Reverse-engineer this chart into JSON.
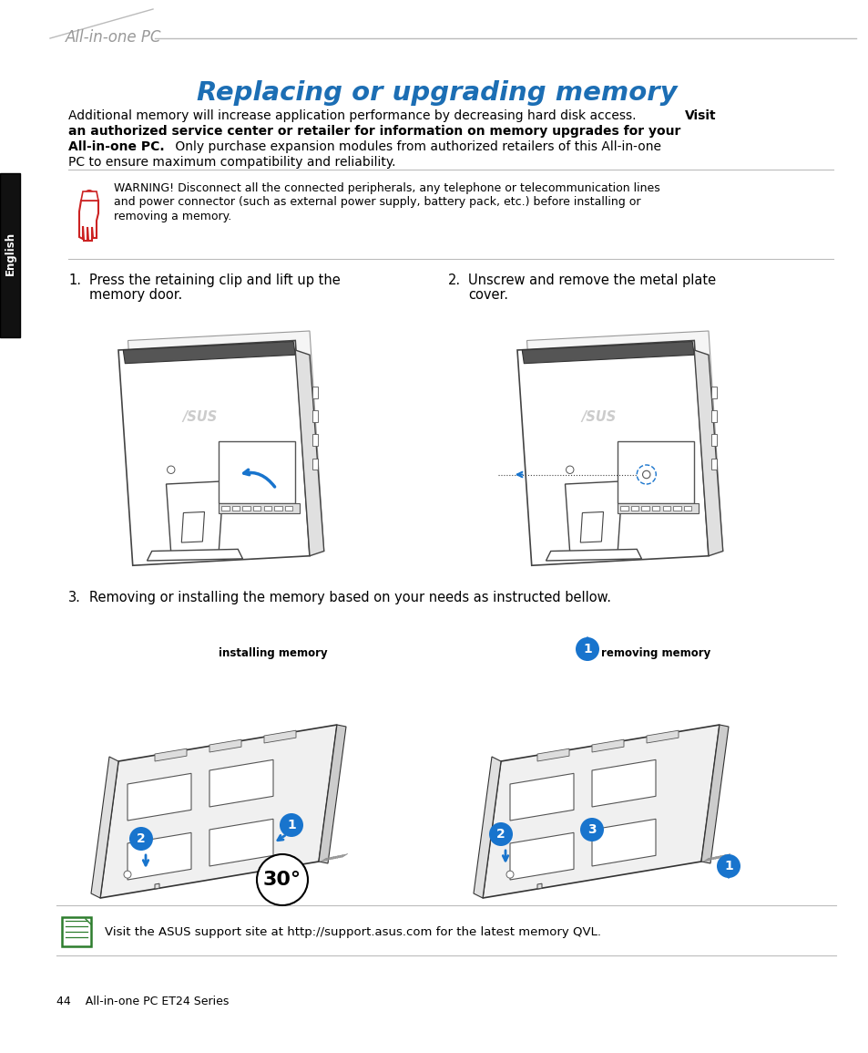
{
  "title": "Replacing or upgrading memory",
  "header_label": "All-in-one PC",
  "body_line1": "Additional memory will increase application performance by decreasing hard disk access. ",
  "body_bold2": "Visit",
  "body_bold3": "an authorized service center or retailer for information on memory upgrades for your",
  "body_bold4": "All-in-one PC.",
  "body_normal4b": " Only purchase expansion modules from authorized retailers of this All-in-one",
  "body_line5": "PC to ensure maximum compatibility and reliability.",
  "warning_text1": "WARNING! Disconnect all the connected peripherals, any telephone or telecommunication lines",
  "warning_text2": "and power connector (such as external power supply, battery pack, etc.) before installing or",
  "warning_text3": "removing a memory.",
  "step1a": "Press the retaining clip and lift up the",
  "step1b": "memory door.",
  "step2a": "Unscrew and remove the metal plate",
  "step2b": "cover.",
  "step3": "Removing or installing the memory based on your needs as instructed bellow.",
  "note_text": "Visit the ASUS support site at http://support.asus.com for the latest memory QVL.",
  "footer_text": "44    All-in-one PC ET24 Series",
  "title_color": "#1c6eb4",
  "header_color": "#999999",
  "bg_color": "#ffffff",
  "english_tab_color": "#111111",
  "warning_icon_color": "#cc2222",
  "note_icon_color": "#2d7d2d",
  "blue_arrow": "#1874CD",
  "installing_label": "installing memory",
  "removing_label": "removing memory"
}
